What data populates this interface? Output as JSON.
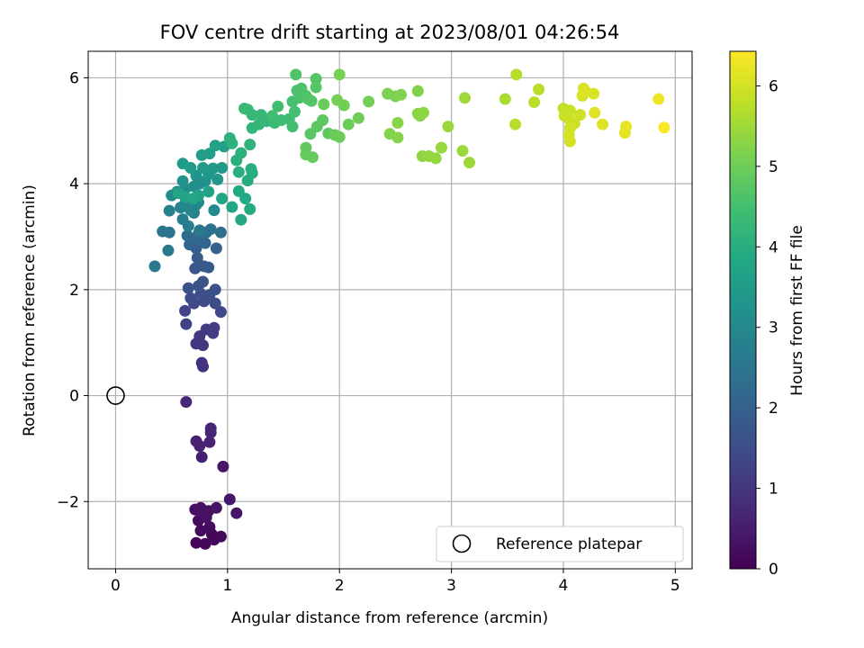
{
  "chart_data": {
    "type": "scatter",
    "title": "FOV centre drift starting at 2023/08/01 04:26:54",
    "xlabel": "Angular distance from reference (arcmin)",
    "ylabel": "Rotation from reference (arcmin)",
    "xlim": [
      -0.245,
      5.15
    ],
    "ylim": [
      -3.27,
      6.5
    ],
    "xticks": [
      0,
      1,
      2,
      3,
      4,
      5
    ],
    "yticks": [
      -2,
      0,
      2,
      4,
      6
    ],
    "xtick_labels": [
      "0",
      "1",
      "2",
      "3",
      "4",
      "5"
    ],
    "ytick_labels": [
      "−2",
      "0",
      "2",
      "4",
      "6"
    ],
    "grid": true,
    "colormap": "viridis",
    "colorbar": {
      "label": "Hours from first FF file",
      "range": [
        0,
        6.43
      ],
      "ticks": [
        0,
        1,
        2,
        3,
        4,
        5,
        6
      ],
      "tick_labels": [
        "0",
        "1",
        "2",
        "3",
        "4",
        "5",
        "6"
      ]
    },
    "legend": {
      "location": "lower right",
      "entries": [
        "Reference platepar"
      ]
    },
    "reference_point": {
      "x": 0,
      "y": 0,
      "label": "Reference platepar"
    },
    "series": [
      {
        "points": [
          [
            0.72,
            -2.78,
            0.05
          ],
          [
            0.8,
            -2.8,
            0.08
          ],
          [
            0.88,
            -2.72,
            0.12
          ],
          [
            0.94,
            -2.66,
            0.15
          ],
          [
            0.86,
            -2.62,
            0.1
          ],
          [
            0.76,
            -2.55,
            0.18
          ],
          [
            0.84,
            -2.48,
            0.2
          ],
          [
            0.74,
            -2.36,
            0.22
          ],
          [
            0.81,
            -2.3,
            0.25
          ],
          [
            0.78,
            -2.22,
            0.28
          ],
          [
            0.83,
            -2.18,
            0.3
          ],
          [
            0.71,
            -2.15,
            0.27
          ],
          [
            0.76,
            -2.12,
            0.32
          ],
          [
            0.9,
            -2.12,
            0.34
          ],
          [
            1.08,
            -2.22,
            0.36
          ],
          [
            1.02,
            -1.96,
            0.38
          ],
          [
            0.96,
            -1.34,
            0.42
          ],
          [
            0.77,
            -1.16,
            0.55
          ],
          [
            0.72,
            -0.86,
            0.6
          ],
          [
            0.75,
            -0.95,
            0.58
          ],
          [
            0.84,
            -0.88,
            0.62
          ],
          [
            0.85,
            -0.7,
            0.65
          ],
          [
            0.85,
            -0.62,
            0.68
          ],
          [
            0.63,
            -0.12,
            0.72
          ],
          [
            0.78,
            0.55,
            0.9
          ],
          [
            0.77,
            0.62,
            0.92
          ],
          [
            0.78,
            0.95,
            1.0
          ],
          [
            0.72,
            0.98,
            1.02
          ],
          [
            0.75,
            1.12,
            1.06
          ],
          [
            0.81,
            1.25,
            1.1
          ],
          [
            0.88,
            1.28,
            1.12
          ],
          [
            0.87,
            1.18,
            1.15
          ],
          [
            0.63,
            1.35,
            1.25
          ],
          [
            0.62,
            1.6,
            1.3
          ],
          [
            0.94,
            1.58,
            1.35
          ],
          [
            0.7,
            1.74,
            1.4
          ],
          [
            0.79,
            1.78,
            1.45
          ],
          [
            0.89,
            1.74,
            1.48
          ],
          [
            0.67,
            1.84,
            1.5
          ],
          [
            0.76,
            1.92,
            1.52
          ],
          [
            0.84,
            1.9,
            1.55
          ],
          [
            0.89,
            2.0,
            1.58
          ],
          [
            0.65,
            2.03,
            1.6
          ],
          [
            0.74,
            2.07,
            1.62
          ],
          [
            0.78,
            2.15,
            1.66
          ],
          [
            0.71,
            2.4,
            1.75
          ],
          [
            0.79,
            2.44,
            1.78
          ],
          [
            0.83,
            2.42,
            1.8
          ],
          [
            0.73,
            2.6,
            1.85
          ],
          [
            0.72,
            2.78,
            1.95
          ],
          [
            0.9,
            2.78,
            2.0
          ],
          [
            0.66,
            2.85,
            2.05
          ],
          [
            0.8,
            2.88,
            2.1
          ],
          [
            0.72,
            2.95,
            2.15
          ],
          [
            0.64,
            3.02,
            2.2
          ],
          [
            0.74,
            3.05,
            2.25
          ],
          [
            0.81,
            3.08,
            2.3
          ],
          [
            0.94,
            3.08,
            2.35
          ],
          [
            0.85,
            3.14,
            2.4
          ],
          [
            0.48,
            3.08,
            2.45
          ],
          [
            0.42,
            3.1,
            2.5
          ],
          [
            0.47,
            2.74,
            2.55
          ],
          [
            0.35,
            2.44,
            2.6
          ],
          [
            0.75,
            3.12,
            2.62
          ],
          [
            0.65,
            3.2,
            2.65
          ],
          [
            0.6,
            3.33,
            2.7
          ],
          [
            0.7,
            3.45,
            2.75
          ],
          [
            0.48,
            3.49,
            2.8
          ],
          [
            0.58,
            3.55,
            2.85
          ],
          [
            0.72,
            3.6,
            2.9
          ],
          [
            0.62,
            3.62,
            2.92
          ],
          [
            0.67,
            3.5,
            2.95
          ],
          [
            0.88,
            3.5,
            2.98
          ],
          [
            0.74,
            3.65,
            3.0
          ],
          [
            0.5,
            3.78,
            3.05
          ],
          [
            0.55,
            3.85,
            3.08
          ],
          [
            0.62,
            3.9,
            3.1
          ],
          [
            0.7,
            3.95,
            3.15
          ],
          [
            0.75,
            4.0,
            3.18
          ],
          [
            0.8,
            4.05,
            3.22
          ],
          [
            0.6,
            4.05,
            3.25
          ],
          [
            0.72,
            4.15,
            3.3
          ],
          [
            0.83,
            4.18,
            3.35
          ],
          [
            0.91,
            4.08,
            3.4
          ],
          [
            0.87,
            4.29,
            3.42
          ],
          [
            0.95,
            4.3,
            3.45
          ],
          [
            0.78,
            4.3,
            3.48
          ],
          [
            0.67,
            4.3,
            3.5
          ],
          [
            0.6,
            4.38,
            3.52
          ],
          [
            0.77,
            4.54,
            3.55
          ],
          [
            0.84,
            4.57,
            3.58
          ],
          [
            0.97,
            4.7,
            3.62
          ],
          [
            0.89,
            4.72,
            3.65
          ],
          [
            0.74,
            3.78,
            3.7
          ],
          [
            0.83,
            3.85,
            3.72
          ],
          [
            0.95,
            3.72,
            3.75
          ],
          [
            0.62,
            3.75,
            3.76
          ],
          [
            0.56,
            3.82,
            3.78
          ],
          [
            0.69,
            3.72,
            3.8
          ],
          [
            1.04,
            3.56,
            3.82
          ],
          [
            1.12,
            3.32,
            3.85
          ],
          [
            1.16,
            3.72,
            3.88
          ],
          [
            1.1,
            3.86,
            3.9
          ],
          [
            1.2,
            3.52,
            3.92
          ],
          [
            1.18,
            4.06,
            3.95
          ],
          [
            1.22,
            4.2,
            3.97
          ],
          [
            1.1,
            4.22,
            4.0
          ],
          [
            1.21,
            4.28,
            4.02
          ],
          [
            1.08,
            4.44,
            4.05
          ],
          [
            1.12,
            4.58,
            4.08
          ],
          [
            1.04,
            4.76,
            4.1
          ],
          [
            1.02,
            4.86,
            4.12
          ],
          [
            1.2,
            4.74,
            4.15
          ],
          [
            1.22,
            5.05,
            4.18
          ],
          [
            1.28,
            5.12,
            4.2
          ],
          [
            1.35,
            5.18,
            4.22
          ],
          [
            1.3,
            5.3,
            4.25
          ],
          [
            1.22,
            5.3,
            4.28
          ],
          [
            1.18,
            5.4,
            4.3
          ],
          [
            1.15,
            5.42,
            4.32
          ],
          [
            1.42,
            5.15,
            4.35
          ],
          [
            1.48,
            5.2,
            4.38
          ],
          [
            1.55,
            5.22,
            4.4
          ],
          [
            1.4,
            5.28,
            4.42
          ],
          [
            1.45,
            5.46,
            4.45
          ],
          [
            1.58,
            5.08,
            4.48
          ],
          [
            1.6,
            5.36,
            4.5
          ],
          [
            1.58,
            5.55,
            4.52
          ],
          [
            1.64,
            5.62,
            4.55
          ],
          [
            1.62,
            5.76,
            4.58
          ],
          [
            1.7,
            5.66,
            4.6
          ],
          [
            1.66,
            5.8,
            4.62
          ],
          [
            1.61,
            6.06,
            4.64
          ],
          [
            1.72,
            5.6,
            4.66
          ],
          [
            1.75,
            5.56,
            4.68
          ],
          [
            1.79,
            5.82,
            4.7
          ],
          [
            1.79,
            5.98,
            4.72
          ],
          [
            1.74,
            4.94,
            4.75
          ],
          [
            1.8,
            5.08,
            4.78
          ],
          [
            1.85,
            5.2,
            4.8
          ],
          [
            1.9,
            4.95,
            4.82
          ],
          [
            1.7,
            4.68,
            4.85
          ],
          [
            1.7,
            4.55,
            4.88
          ],
          [
            1.76,
            4.5,
            4.9
          ],
          [
            1.86,
            5.5,
            4.92
          ],
          [
            1.96,
            4.92,
            4.94
          ],
          [
            2.0,
            4.88,
            4.96
          ],
          [
            2.08,
            5.12,
            4.98
          ],
          [
            2.17,
            5.24,
            5.0
          ],
          [
            2.04,
            5.48,
            5.02
          ],
          [
            2.26,
            5.55,
            5.05
          ],
          [
            1.98,
            5.58,
            5.08
          ],
          [
            2.0,
            6.06,
            5.1
          ],
          [
            2.43,
            5.7,
            5.14
          ],
          [
            2.5,
            5.65,
            5.16
          ],
          [
            2.55,
            5.68,
            5.18
          ],
          [
            2.7,
            5.75,
            5.2
          ],
          [
            2.45,
            4.94,
            5.22
          ],
          [
            2.52,
            4.87,
            5.24
          ],
          [
            2.52,
            5.15,
            5.26
          ],
          [
            2.72,
            5.28,
            5.28
          ],
          [
            2.7,
            5.32,
            5.3
          ],
          [
            2.75,
            5.34,
            5.32
          ],
          [
            2.74,
            4.52,
            5.35
          ],
          [
            2.8,
            4.52,
            5.38
          ],
          [
            2.86,
            4.48,
            5.4
          ],
          [
            2.91,
            4.68,
            5.42
          ],
          [
            2.97,
            5.08,
            5.44
          ],
          [
            3.1,
            4.62,
            5.46
          ],
          [
            3.16,
            4.4,
            5.48
          ],
          [
            3.12,
            5.62,
            5.5
          ],
          [
            3.48,
            5.6,
            5.6
          ],
          [
            3.58,
            6.06,
            5.7
          ],
          [
            3.57,
            5.12,
            5.72
          ],
          [
            3.74,
            5.54,
            5.74
          ],
          [
            3.78,
            5.78,
            5.76
          ],
          [
            4.0,
            5.42,
            5.85
          ],
          [
            4.06,
            5.38,
            5.88
          ],
          [
            4.01,
            5.28,
            5.9
          ],
          [
            4.05,
            5.22,
            5.92
          ],
          [
            4.1,
            5.14,
            5.94
          ],
          [
            4.15,
            5.3,
            5.96
          ],
          [
            4.06,
            5.05,
            5.98
          ],
          [
            4.05,
            4.92,
            6.0
          ],
          [
            4.06,
            4.8,
            6.02
          ],
          [
            4.17,
            5.66,
            6.04
          ],
          [
            4.18,
            5.8,
            6.06
          ],
          [
            4.27,
            5.7,
            6.08
          ],
          [
            4.2,
            5.74,
            6.1
          ],
          [
            4.28,
            5.34,
            6.12
          ],
          [
            4.35,
            5.12,
            6.14
          ],
          [
            4.55,
            4.96,
            6.18
          ],
          [
            4.56,
            5.08,
            6.2
          ],
          [
            4.85,
            5.6,
            6.3
          ],
          [
            4.9,
            5.06,
            6.4
          ]
        ]
      }
    ]
  }
}
